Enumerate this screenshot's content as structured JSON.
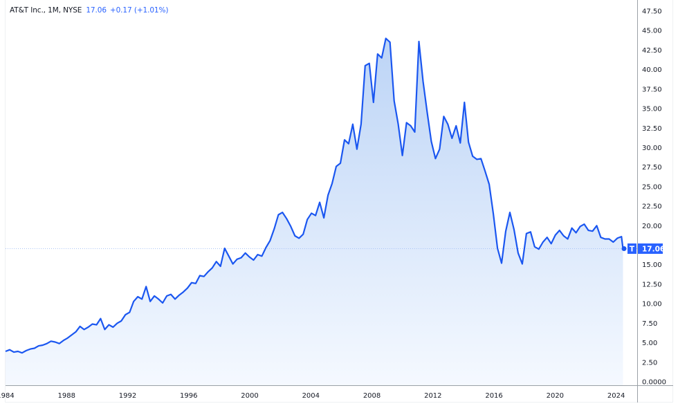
{
  "legend": {
    "symbol": "AT&T Inc., 1M, NYSE",
    "last_price": "17.06",
    "change": "+0.17 (+1.01%)"
  },
  "price_tag": {
    "ticker": "T",
    "value": "17.06"
  },
  "colors": {
    "line": "#1a56f0",
    "fill_top": "#bcd4f6",
    "fill_bottom": "#f5f9ff",
    "tag_bg": "#2962ff",
    "axis": "#9aa0a6",
    "price_line": "#a9c4f5"
  },
  "chart_data": {
    "type": "area",
    "title": "AT&T Inc., 1M, NYSE",
    "xlabel": "",
    "ylabel": "",
    "ylim": [
      0,
      47.5
    ],
    "xlim": [
      1984,
      2024.5
    ],
    "grid": false,
    "legend_position": "top-left",
    "y_ticks": [
      "47.50",
      "45.00",
      "42.50",
      "40.00",
      "37.50",
      "35.00",
      "32.50",
      "30.00",
      "27.50",
      "25.00",
      "22.50",
      "20.00",
      "17.50",
      "15.00",
      "12.50",
      "10.00",
      "7.50",
      "5.00",
      "2.50",
      "0.0000"
    ],
    "x_ticks": [
      "1984",
      "1988",
      "1992",
      "1996",
      "2000",
      "2004",
      "2008",
      "2012",
      "2016",
      "2020",
      "2024"
    ],
    "last_value": 17.06,
    "series": [
      {
        "name": "T",
        "points": [
          [
            1984.0,
            3.9
          ],
          [
            1984.25,
            4.1
          ],
          [
            1984.5,
            3.8
          ],
          [
            1984.75,
            3.9
          ],
          [
            1985.0,
            3.7
          ],
          [
            1985.25,
            4.0
          ],
          [
            1985.5,
            4.2
          ],
          [
            1985.75,
            4.3
          ],
          [
            1986.0,
            4.6
          ],
          [
            1986.25,
            4.7
          ],
          [
            1986.5,
            4.9
          ],
          [
            1986.75,
            5.2
          ],
          [
            1987.0,
            5.1
          ],
          [
            1987.25,
            4.9
          ],
          [
            1987.5,
            5.3
          ],
          [
            1987.75,
            5.6
          ],
          [
            1988.0,
            6.0
          ],
          [
            1988.25,
            6.4
          ],
          [
            1988.5,
            7.1
          ],
          [
            1988.75,
            6.7
          ],
          [
            1989.0,
            7.0
          ],
          [
            1989.25,
            7.4
          ],
          [
            1989.5,
            7.3
          ],
          [
            1989.75,
            8.1
          ],
          [
            1990.0,
            6.7
          ],
          [
            1990.25,
            7.3
          ],
          [
            1990.5,
            7.0
          ],
          [
            1990.75,
            7.5
          ],
          [
            1991.0,
            7.8
          ],
          [
            1991.25,
            8.6
          ],
          [
            1991.5,
            8.9
          ],
          [
            1991.75,
            10.3
          ],
          [
            1992.0,
            10.9
          ],
          [
            1992.25,
            10.6
          ],
          [
            1992.5,
            12.2
          ],
          [
            1992.75,
            10.3
          ],
          [
            1993.0,
            11.0
          ],
          [
            1993.25,
            10.6
          ],
          [
            1993.5,
            10.1
          ],
          [
            1993.75,
            11.0
          ],
          [
            1994.0,
            11.2
          ],
          [
            1994.25,
            10.6
          ],
          [
            1994.5,
            11.1
          ],
          [
            1994.75,
            11.5
          ],
          [
            1995.0,
            12.0
          ],
          [
            1995.25,
            12.7
          ],
          [
            1995.5,
            12.6
          ],
          [
            1995.75,
            13.6
          ],
          [
            1996.0,
            13.5
          ],
          [
            1996.25,
            14.1
          ],
          [
            1996.5,
            14.6
          ],
          [
            1996.75,
            15.4
          ],
          [
            1997.0,
            14.8
          ],
          [
            1997.25,
            17.1
          ],
          [
            1997.5,
            16.1
          ],
          [
            1997.75,
            15.1
          ],
          [
            1998.0,
            15.7
          ],
          [
            1998.25,
            15.9
          ],
          [
            1998.5,
            16.5
          ],
          [
            1998.75,
            16.0
          ],
          [
            1999.0,
            15.6
          ],
          [
            1999.25,
            16.3
          ],
          [
            1999.5,
            16.1
          ],
          [
            1999.75,
            17.2
          ],
          [
            2000.0,
            18.1
          ],
          [
            2000.25,
            19.6
          ],
          [
            2000.5,
            21.4
          ],
          [
            2000.75,
            21.7
          ],
          [
            2001.0,
            20.9
          ],
          [
            2001.25,
            19.9
          ],
          [
            2001.5,
            18.7
          ],
          [
            2001.75,
            18.4
          ],
          [
            2002.0,
            18.9
          ],
          [
            2002.25,
            20.8
          ],
          [
            2002.5,
            21.6
          ],
          [
            2002.75,
            21.3
          ],
          [
            2003.0,
            23.0
          ],
          [
            2003.25,
            21.0
          ],
          [
            2003.5,
            23.9
          ],
          [
            2003.75,
            25.4
          ],
          [
            2004.0,
            27.6
          ],
          [
            2004.25,
            28.0
          ],
          [
            2004.5,
            31.0
          ],
          [
            2004.75,
            30.5
          ],
          [
            2005.0,
            33.0
          ],
          [
            2005.25,
            29.8
          ],
          [
            2005.5,
            33.0
          ],
          [
            2005.75,
            40.5
          ],
          [
            2006.0,
            40.8
          ],
          [
            2006.25,
            35.8
          ],
          [
            2006.5,
            42.0
          ],
          [
            2006.75,
            41.5
          ],
          [
            2007.0,
            44.0
          ],
          [
            2007.25,
            43.5
          ],
          [
            2007.5,
            36.0
          ],
          [
            2007.75,
            33.0
          ],
          [
            2008.0,
            29.0
          ],
          [
            2008.25,
            33.2
          ],
          [
            2008.5,
            32.8
          ],
          [
            2008.75,
            32.0
          ],
          [
            2009.0,
            43.6
          ],
          [
            2009.25,
            38.5
          ],
          [
            2009.5,
            34.5
          ],
          [
            2009.75,
            30.8
          ],
          [
            2010.0,
            28.6
          ],
          [
            2010.25,
            29.8
          ],
          [
            2010.5,
            34.0
          ],
          [
            2010.75,
            33.0
          ],
          [
            2011.0,
            31.2
          ],
          [
            2011.25,
            32.8
          ],
          [
            2011.5,
            30.6
          ],
          [
            2011.75,
            35.8
          ],
          [
            2012.0,
            30.7
          ],
          [
            2012.25,
            28.9
          ],
          [
            2012.5,
            28.5
          ],
          [
            2012.75,
            28.6
          ],
          [
            2013.0,
            27.0
          ],
          [
            2013.25,
            25.3
          ],
          [
            2013.5,
            21.5
          ],
          [
            2013.75,
            17.1
          ],
          [
            2014.0,
            15.2
          ],
          [
            2014.25,
            19.3
          ],
          [
            2014.5,
            21.7
          ],
          [
            2014.75,
            19.5
          ],
          [
            2015.0,
            16.5
          ],
          [
            2015.25,
            15.1
          ],
          [
            2015.5,
            19.0
          ],
          [
            2015.75,
            19.2
          ],
          [
            2016.0,
            17.3
          ],
          [
            2016.25,
            17.0
          ],
          [
            2016.5,
            17.9
          ],
          [
            2016.75,
            18.5
          ],
          [
            2017.0,
            17.7
          ],
          [
            2017.25,
            18.8
          ],
          [
            2017.5,
            19.4
          ],
          [
            2017.75,
            18.7
          ],
          [
            2018.0,
            18.3
          ],
          [
            2018.25,
            19.7
          ],
          [
            2018.5,
            19.1
          ],
          [
            2018.75,
            19.9
          ],
          [
            2019.0,
            20.2
          ],
          [
            2019.25,
            19.4
          ],
          [
            2019.5,
            19.3
          ],
          [
            2019.75,
            20.0
          ],
          [
            2020.0,
            18.5
          ],
          [
            2020.25,
            18.3
          ],
          [
            2020.5,
            18.3
          ],
          [
            2020.75,
            17.9
          ],
          [
            2021.0,
            18.4
          ],
          [
            2021.25,
            18.6
          ]
        ]
      }
    ]
  }
}
